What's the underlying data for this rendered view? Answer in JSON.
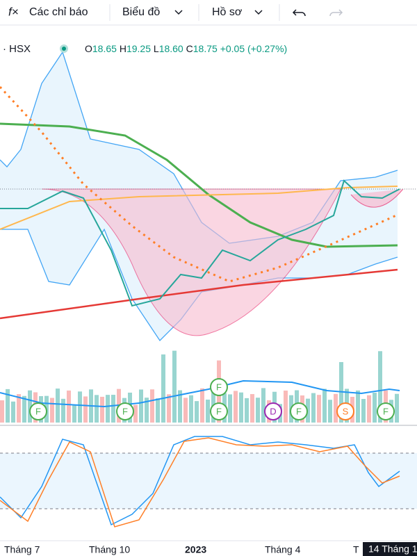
{
  "toolbar": {
    "items": [
      "Các chỉ báo",
      "Biểu đồ",
      "Hồ sơ"
    ]
  },
  "legend": {
    "symbol": "HSX",
    "open_label": "O",
    "open": "18.65",
    "high_label": "H",
    "high": "19.25",
    "low_label": "L",
    "low": "18.60",
    "close_label": "C",
    "close": "18.75",
    "change": "+0.05 (+0.27%)"
  },
  "events": [
    "F",
    "F",
    "F",
    "F",
    "D",
    "F",
    "S",
    "F"
  ],
  "x_axis": {
    "labels": [
      "Tháng 7",
      "Tháng 10",
      "2023",
      "Tháng 4",
      "T"
    ],
    "cursor_label": "14 Tháng 1"
  }
}
